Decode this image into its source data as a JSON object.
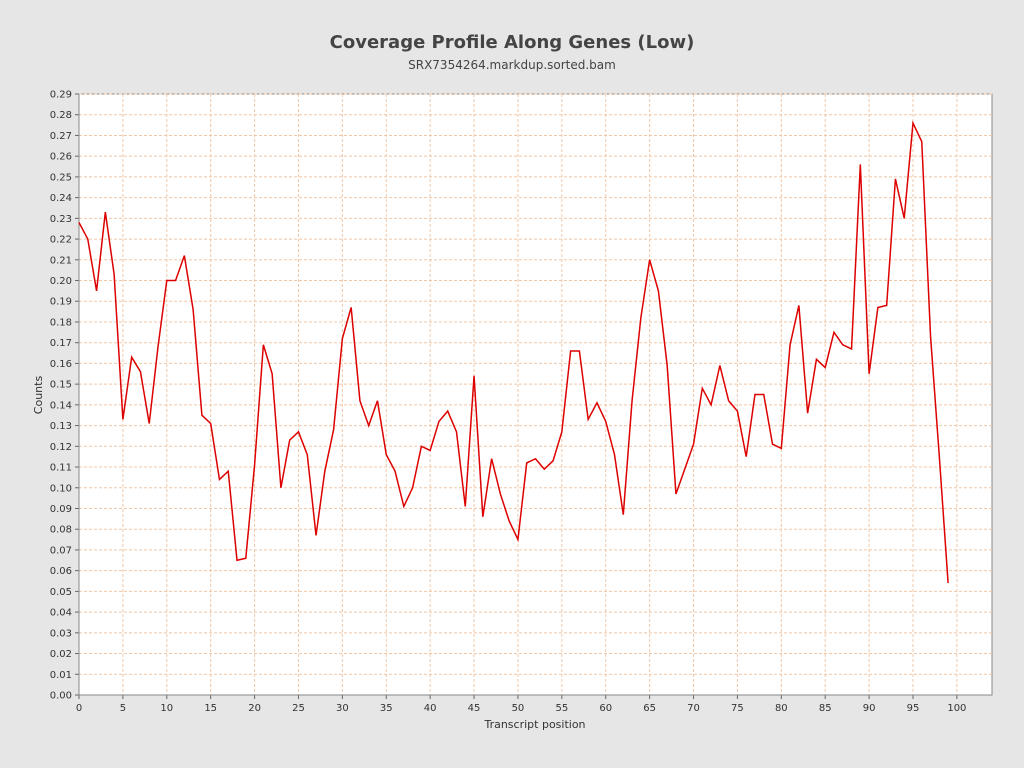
{
  "chart_data": {
    "type": "line",
    "title": "Coverage Profile Along Genes (Low)",
    "subtitle": "SRX7354264.markdup.sorted.bam",
    "xlabel": "Transcript position",
    "ylabel": "Counts",
    "xlim": [
      0,
      104
    ],
    "ylim": [
      0,
      0.29
    ],
    "xticks": [
      0,
      5,
      10,
      15,
      20,
      25,
      30,
      35,
      40,
      45,
      50,
      55,
      60,
      65,
      70,
      75,
      80,
      85,
      90,
      95,
      100
    ],
    "yticks": [
      "0.00",
      "0.01",
      "0.02",
      "0.03",
      "0.04",
      "0.05",
      "0.06",
      "0.07",
      "0.08",
      "0.09",
      "0.10",
      "0.11",
      "0.12",
      "0.13",
      "0.14",
      "0.15",
      "0.16",
      "0.17",
      "0.18",
      "0.19",
      "0.20",
      "0.21",
      "0.22",
      "0.23",
      "0.24",
      "0.25",
      "0.26",
      "0.27",
      "0.28",
      "0.29"
    ],
    "grid": true,
    "line_color": "#dd0000",
    "grid_color": "#f0c8a8",
    "series": [
      {
        "name": "",
        "x": [
          0,
          1,
          2,
          3,
          4,
          5,
          6,
          7,
          8,
          9,
          10,
          11,
          12,
          13,
          14,
          15,
          16,
          17,
          18,
          19,
          20,
          21,
          22,
          23,
          24,
          25,
          26,
          27,
          28,
          29,
          30,
          31,
          32,
          33,
          34,
          35,
          36,
          37,
          38,
          39,
          40,
          41,
          42,
          43,
          44,
          45,
          46,
          47,
          48,
          49,
          50,
          51,
          52,
          53,
          54,
          55,
          56,
          57,
          58,
          59,
          60,
          61,
          62,
          63,
          64,
          65,
          66,
          67,
          68,
          69,
          70,
          71,
          72,
          73,
          74,
          75,
          76,
          77,
          78,
          79,
          80,
          81,
          82,
          83,
          84,
          85,
          86,
          87,
          88,
          89,
          90,
          91,
          92,
          93,
          94,
          95,
          96,
          97,
          98,
          99
        ],
        "values": [
          0.228,
          0.22,
          0.195,
          0.233,
          0.203,
          0.133,
          0.163,
          0.156,
          0.131,
          0.168,
          0.2,
          0.2,
          0.212,
          0.186,
          0.135,
          0.131,
          0.104,
          0.108,
          0.065,
          0.066,
          0.111,
          0.169,
          0.155,
          0.1,
          0.123,
          0.127,
          0.116,
          0.077,
          0.108,
          0.128,
          0.172,
          0.187,
          0.142,
          0.13,
          0.142,
          0.116,
          0.108,
          0.091,
          0.1,
          0.12,
          0.118,
          0.132,
          0.137,
          0.127,
          0.091,
          0.154,
          0.086,
          0.114,
          0.097,
          0.084,
          0.075,
          0.112,
          0.114,
          0.109,
          0.113,
          0.127,
          0.166,
          0.166,
          0.133,
          0.141,
          0.132,
          0.116,
          0.087,
          0.142,
          0.182,
          0.21,
          0.195,
          0.159,
          0.097,
          0.109,
          0.121,
          0.148,
          0.14,
          0.159,
          0.142,
          0.137,
          0.115,
          0.145,
          0.145,
          0.121,
          0.119,
          0.169,
          0.188,
          0.136,
          0.162,
          0.158,
          0.175,
          0.169,
          0.167,
          0.256,
          0.155,
          0.187,
          0.188,
          0.249,
          0.23,
          0.276,
          0.267,
          0.173,
          0.115,
          0.054
        ]
      }
    ]
  }
}
